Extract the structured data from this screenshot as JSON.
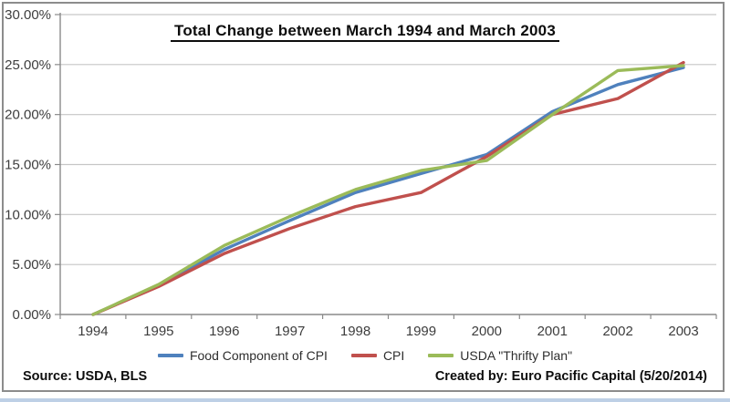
{
  "chart_data": {
    "type": "line",
    "title": "Total Change between March 1994 and March 2003",
    "categories": [
      "1994",
      "1995",
      "1996",
      "1997",
      "1998",
      "1999",
      "2000",
      "2001",
      "2002",
      "2003"
    ],
    "series": [
      {
        "name": "Food Component of CPI",
        "color": "#4F81BD",
        "values": [
          0,
          2.9,
          6.5,
          9.4,
          12.2,
          14.1,
          16.0,
          20.3,
          23.0,
          24.7
        ]
      },
      {
        "name": "CPI",
        "color": "#C0504D",
        "values": [
          0,
          2.8,
          6.1,
          8.6,
          10.8,
          12.2,
          15.8,
          20.0,
          21.6,
          25.2
        ]
      },
      {
        "name": "USDA \"Thrifty Plan\"",
        "color": "#9BBB59",
        "values": [
          0,
          3.0,
          6.9,
          9.8,
          12.5,
          14.4,
          15.4,
          20.0,
          24.4,
          24.9
        ]
      }
    ],
    "xlabel": "",
    "ylabel": "",
    "ylim": [
      0,
      30
    ],
    "ytick_step": 5,
    "ytick_labels": [
      "0.00%",
      "5.00%",
      "10.00%",
      "15.00%",
      "20.00%",
      "25.00%",
      "30.00%"
    ],
    "grid": true,
    "legend_position": "bottom-center",
    "grid_color": "#c6c6c6",
    "axis_color": "#8a8a8a",
    "label_color": "#3d3d3d"
  },
  "footer": {
    "source": "Source: USDA, BLS",
    "credit": "Created by: Euro Pacific Capital (5/20/2014)"
  }
}
